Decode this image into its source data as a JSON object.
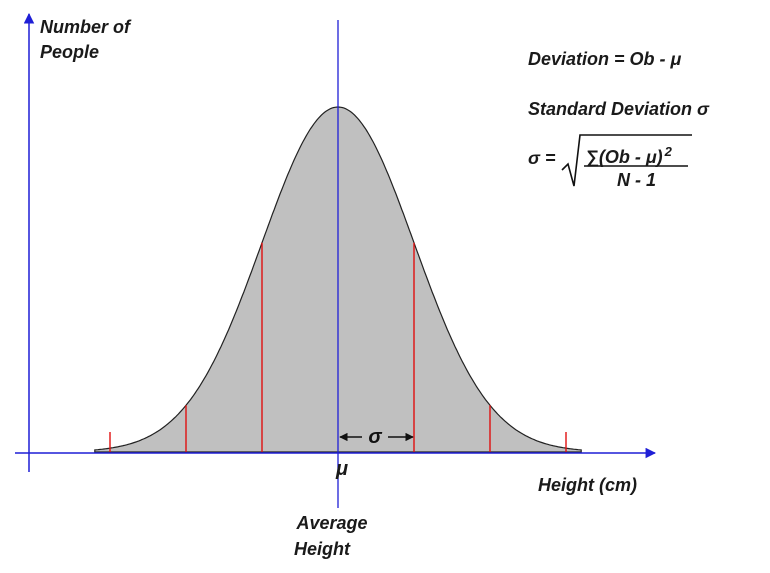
{
  "y_axis_label": {
    "line1": "Number of",
    "line2": "People"
  },
  "x_axis_label": "Height  (cm)",
  "mean_symbol": "μ",
  "mean_label": {
    "line1": "Average",
    "line2": "Height"
  },
  "sigma_symbol": "σ",
  "formulas": {
    "deviation": "Deviation  = Ob - μ",
    "std_dev_title": "Standard Deviation σ",
    "std_lhs": "σ =",
    "std_numerator": "∑(Ob - μ)",
    "std_exponent": "2",
    "std_denominator": "N - 1"
  },
  "colors": {
    "axis": "#1f1fd6",
    "curve_fill": "#c0c0c0",
    "curve_stroke": "#222222",
    "sigma_lines": "#e01010",
    "text": "#1a1a1a"
  },
  "chart_data": {
    "type": "area",
    "distribution": "normal",
    "mean": 0,
    "std_dev": 1,
    "x_range_sd": [
      -3.2,
      3.2
    ],
    "sigma_markers_sd": [
      -3,
      -2,
      -1,
      1,
      2,
      3
    ],
    "sigma_interval_sd": [
      0,
      1
    ],
    "xlabel": "Height  (cm)",
    "ylabel": "Number of People"
  }
}
